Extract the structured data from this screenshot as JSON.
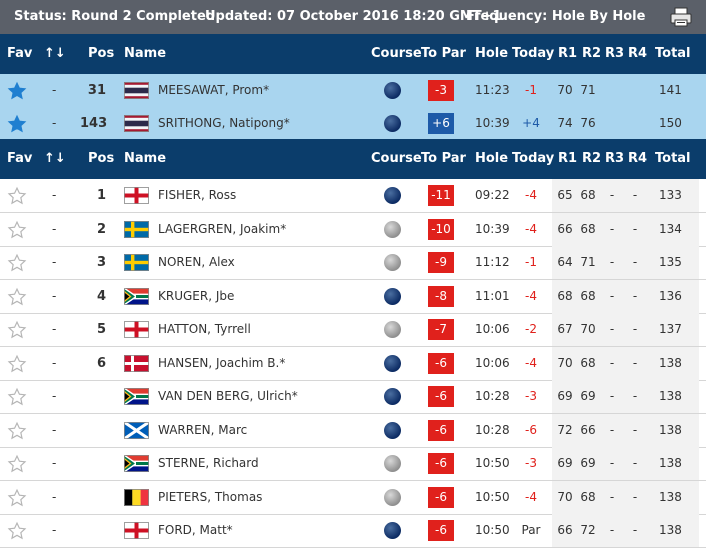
{
  "status_bar": {
    "status": "Status: Round 2 Completed",
    "updated": "Updated: 07 October 2016 18:20 GMT+1",
    "frequency": "Frequency: Hole By Hole"
  },
  "headers": {
    "fav": "Fav",
    "move": "↑↓",
    "pos": "Pos",
    "name": "Name",
    "course": "Course",
    "to_par": "To Par",
    "hole": "Hole",
    "today": "Today",
    "r1": "R1",
    "r2": "R2",
    "r3": "R3",
    "r4": "R4",
    "total": "Total"
  },
  "colors": {
    "header_bg": "#0b3d6b",
    "status_bg": "#5b6069",
    "fav_row_bg": "#a9d5ef",
    "over_par": "#e0211c",
    "under_par": "#1d5aa8"
  },
  "favourites": [
    {
      "move": "-",
      "pos": "31",
      "flag": "thailand",
      "name": "MEESAWAT, Prom*",
      "course": "navy",
      "to_par": "-3",
      "hole": "11:23",
      "today": "-1",
      "r1": "70",
      "r2": "71",
      "r3": "",
      "r4": "",
      "total": "141"
    },
    {
      "move": "-",
      "pos": "143",
      "flag": "thailand",
      "name": "SRITHONG, Natipong*",
      "course": "navy",
      "to_par": "+6",
      "hole": "10:39",
      "today": "+4",
      "r1": "74",
      "r2": "76",
      "r3": "",
      "r4": "",
      "total": "150"
    }
  ],
  "players": [
    {
      "move": "-",
      "pos": "1",
      "flag": "england",
      "name": "FISHER, Ross",
      "course": "navy",
      "to_par": "-11",
      "hole": "09:22",
      "today": "-4",
      "r1": "65",
      "r2": "68",
      "r3": "-",
      "r4": "-",
      "total": "133"
    },
    {
      "move": "-",
      "pos": "2",
      "flag": "sweden",
      "name": "LAGERGREN, Joakim*",
      "course": "grey",
      "to_par": "-10",
      "hole": "10:39",
      "today": "-4",
      "r1": "66",
      "r2": "68",
      "r3": "-",
      "r4": "-",
      "total": "134"
    },
    {
      "move": "-",
      "pos": "3",
      "flag": "sweden",
      "name": "NOREN, Alex",
      "course": "grey",
      "to_par": "-9",
      "hole": "11:12",
      "today": "-1",
      "r1": "64",
      "r2": "71",
      "r3": "-",
      "r4": "-",
      "total": "135"
    },
    {
      "move": "-",
      "pos": "4",
      "flag": "south-africa",
      "name": "KRUGER, Jbe",
      "course": "navy",
      "to_par": "-8",
      "hole": "11:01",
      "today": "-4",
      "r1": "68",
      "r2": "68",
      "r3": "-",
      "r4": "-",
      "total": "136"
    },
    {
      "move": "-",
      "pos": "5",
      "flag": "england",
      "name": "HATTON, Tyrrell",
      "course": "grey",
      "to_par": "-7",
      "hole": "10:06",
      "today": "-2",
      "r1": "67",
      "r2": "70",
      "r3": "-",
      "r4": "-",
      "total": "137"
    },
    {
      "move": "-",
      "pos": "6",
      "flag": "denmark",
      "name": "HANSEN, Joachim B.*",
      "course": "navy",
      "to_par": "-6",
      "hole": "10:06",
      "today": "-4",
      "r1": "70",
      "r2": "68",
      "r3": "-",
      "r4": "-",
      "total": "138"
    },
    {
      "move": "-",
      "pos": "",
      "flag": "south-africa",
      "name": "VAN DEN BERG, Ulrich*",
      "course": "navy",
      "to_par": "-6",
      "hole": "10:28",
      "today": "-3",
      "r1": "69",
      "r2": "69",
      "r3": "-",
      "r4": "-",
      "total": "138"
    },
    {
      "move": "-",
      "pos": "",
      "flag": "scotland",
      "name": "WARREN, Marc",
      "course": "navy",
      "to_par": "-6",
      "hole": "10:28",
      "today": "-6",
      "r1": "72",
      "r2": "66",
      "r3": "-",
      "r4": "-",
      "total": "138"
    },
    {
      "move": "-",
      "pos": "",
      "flag": "south-africa",
      "name": "STERNE, Richard",
      "course": "grey",
      "to_par": "-6",
      "hole": "10:50",
      "today": "-3",
      "r1": "69",
      "r2": "69",
      "r3": "-",
      "r4": "-",
      "total": "138"
    },
    {
      "move": "-",
      "pos": "",
      "flag": "belgium",
      "name": "PIETERS, Thomas",
      "course": "grey",
      "to_par": "-6",
      "hole": "10:50",
      "today": "-4",
      "r1": "70",
      "r2": "68",
      "r3": "-",
      "r4": "-",
      "total": "138"
    },
    {
      "move": "-",
      "pos": "",
      "flag": "england",
      "name": "FORD, Matt*",
      "course": "navy",
      "to_par": "-6",
      "hole": "10:50",
      "today": "Par",
      "r1": "66",
      "r2": "72",
      "r3": "-",
      "r4": "-",
      "total": "138"
    }
  ]
}
